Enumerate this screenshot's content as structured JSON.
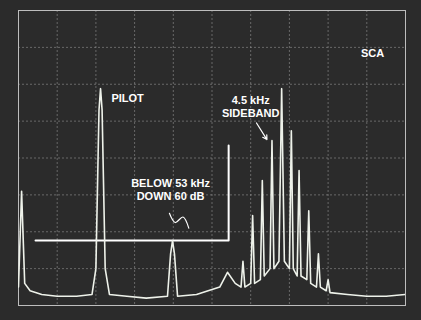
{
  "chart_data": {
    "type": "line",
    "x": [
      0.0,
      0.08,
      0.16,
      0.3,
      0.6,
      1.0,
      1.5,
      1.9,
      2.0,
      2.08,
      2.12,
      2.16,
      2.24,
      2.35,
      2.8,
      3.3,
      3.85,
      3.93,
      3.98,
      4.03,
      4.11,
      4.6,
      4.9,
      5.2,
      5.4,
      5.6,
      5.75,
      5.8,
      5.85,
      6.0,
      6.05,
      6.1,
      6.25,
      6.3,
      6.35,
      6.5,
      6.55,
      6.6,
      6.73,
      6.8,
      6.87,
      7.0,
      7.05,
      7.1,
      7.2,
      7.25,
      7.3,
      7.45,
      7.5,
      7.55,
      7.7,
      7.75,
      7.8,
      7.95,
      8.0,
      8.05,
      8.5,
      9.0,
      9.5,
      10.0
    ],
    "values": [
      0.5,
      3.1,
      0.6,
      0.4,
      0.3,
      0.25,
      0.25,
      0.3,
      1.0,
      5.3,
      5.88,
      5.3,
      1.0,
      0.3,
      0.25,
      0.2,
      0.25,
      1.4,
      1.76,
      1.4,
      0.25,
      0.3,
      0.4,
      0.5,
      0.9,
      0.6,
      0.5,
      1.2,
      0.5,
      0.6,
      2.44,
      0.6,
      0.7,
      3.39,
      0.8,
      1.0,
      4.47,
      1.0,
      1.2,
      5.88,
      1.2,
      1.0,
      4.74,
      1.0,
      0.8,
      3.66,
      0.8,
      0.7,
      2.57,
      0.6,
      0.5,
      1.4,
      0.5,
      0.4,
      0.7,
      0.35,
      0.3,
      0.25,
      0.25,
      0.3
    ],
    "xlim": [
      0,
      10
    ],
    "ylim": [
      0,
      8
    ],
    "xticks": [
      0,
      1,
      2,
      3,
      4,
      5,
      6,
      7,
      8,
      9,
      10
    ],
    "yticks": [
      0,
      1,
      2,
      3,
      4,
      5,
      6,
      7,
      8
    ],
    "grid": true,
    "tick_labels": false,
    "color": "#eef2ea",
    "annotations": [
      "PILOT",
      "SCA",
      "4.5 kHz\nSIDEBAND",
      "BELOW 53 kHz\nDOWN 60 dB"
    ],
    "limit_line": {
      "x": [
        0.44,
        5.43,
        5.43
      ],
      "y": [
        1.76,
        1.76,
        4.34
      ]
    }
  }
}
